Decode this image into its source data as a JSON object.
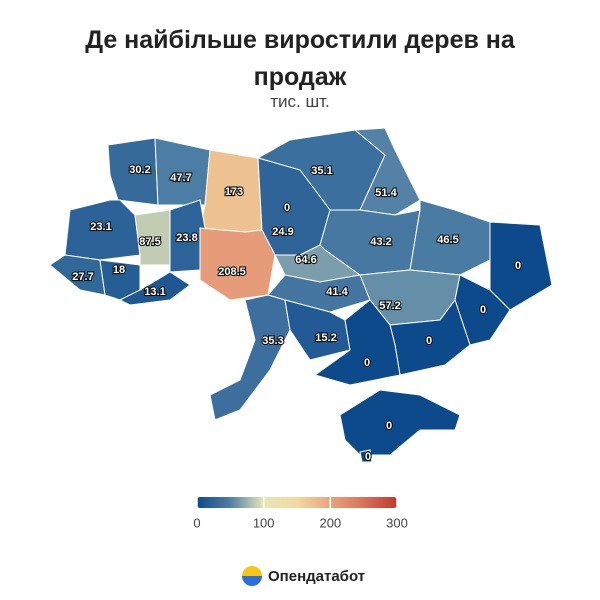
{
  "chart_data": {
    "type": "choropleth",
    "title": "Де найбільше виростили дерев на продаж",
    "subtitle": "тис. шт.",
    "values": [
      30.2,
      47.7,
      173,
      0,
      35.1,
      51.4,
      23.1,
      87.5,
      23.8,
      24.9,
      43.2,
      46.5,
      0,
      27.7,
      18,
      13.1,
      208.5,
      64.6,
      41.4,
      57.2,
      0,
      35.3,
      15.2,
      0,
      0,
      0,
      0
    ],
    "colorscale": [
      "#0d4a8c",
      "#4f7fa5",
      "#e8e6b8",
      "#f3d9a0",
      "#e9a47e",
      "#d9725a",
      "#c0392b"
    ],
    "clim": [
      0,
      300
    ],
    "cticks": [
      0,
      100,
      200,
      300
    ],
    "source": "Опендатабот"
  }
}
